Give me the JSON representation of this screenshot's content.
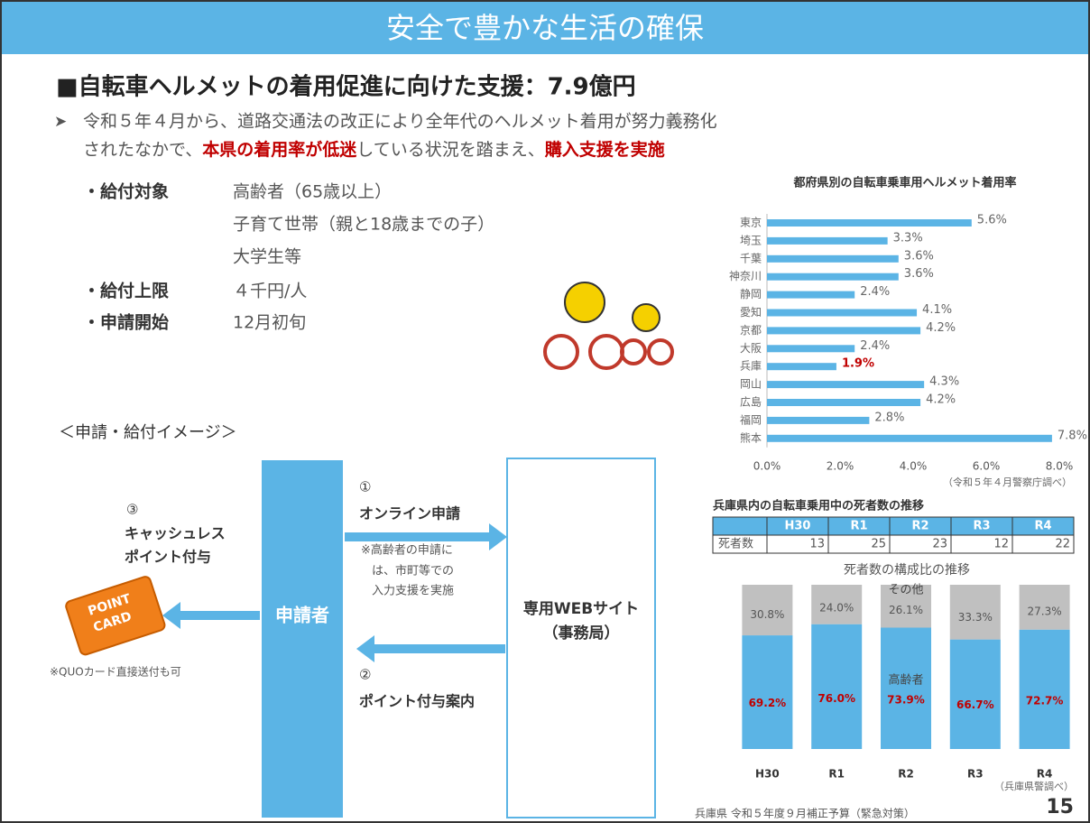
{
  "header": {
    "title": "安全で豊かな生活の確保"
  },
  "heading": "■自転車ヘルメットの着用促進に向けた支援：7.9億円",
  "intro": {
    "line1": "令和５年４月から、道路交通法の改正により全年代のヘルメット着用が努力義務化",
    "line2": [
      "されたなかで、",
      "本県の着用率が低迷",
      "している状況を踏まえ、",
      "購入支援を実施"
    ]
  },
  "items": [
    {
      "label": "・給付対象",
      "values": [
        "高齢者（65歳以上）",
        "子育て世帯（親と18歳までの子）",
        "大学生等"
      ]
    },
    {
      "label": "・給付上限",
      "values": [
        "４千円/人"
      ]
    },
    {
      "label": "・申請開始",
      "values": [
        "12月初旬"
      ]
    }
  ],
  "diagram": {
    "title": "＜申請・給付イメージ＞",
    "applicant": "申請者",
    "site": [
      "専用WEBサイト",
      "（事務局）"
    ],
    "step1": {
      "number": "①",
      "label": "オンライン申請",
      "note": [
        "※高齢者の申請に",
        "は、市町等での",
        "入力支援を実施"
      ]
    },
    "step2": {
      "number": "②",
      "label": "ポイント付与案内"
    },
    "step3": {
      "number": "③",
      "label": [
        "キャッシュレス",
        "ポイント付与"
      ]
    },
    "card": [
      "POINT",
      "CARD"
    ],
    "card_note": "※QUOカード直接送付も可"
  },
  "chart_data": [
    {
      "type": "hbar",
      "title": "都府県別の自転車乗車用ヘルメット着用率",
      "categories": [
        "東京",
        "埼玉",
        "千葉",
        "神奈川",
        "静岡",
        "愛知",
        "京都",
        "大阪",
        "兵庫",
        "岡山",
        "広島",
        "福岡",
        "熊本"
      ],
      "values": [
        5.6,
        3.3,
        3.6,
        3.6,
        2.4,
        4.1,
        4.2,
        2.4,
        1.9,
        4.3,
        4.2,
        2.8,
        7.8
      ],
      "value_labels": [
        "5.6%",
        "3.3%",
        "3.6%",
        "3.6%",
        "2.4%",
        "4.1%",
        "4.2%",
        "2.4%",
        "1.9%",
        "4.3%",
        "4.2%",
        "2.8%",
        "7.8%"
      ],
      "value_label_colors": [
        "#666666",
        "#666666",
        "#666666",
        "#666666",
        "#666666",
        "#666666",
        "#666666",
        "#666666",
        "#c00000",
        "#666666",
        "#666666",
        "#666666",
        "#666666"
      ],
      "color": "#5bb4e5",
      "xlim": [
        0,
        8
      ],
      "xticks": [
        {
          "value": 0,
          "label": "0.0%"
        },
        {
          "value": 2,
          "label": "2.0%"
        },
        {
          "value": 4,
          "label": "4.0%"
        },
        {
          "value": 6,
          "label": "6.0%"
        },
        {
          "value": 8,
          "label": "8.0%"
        }
      ],
      "source": "（令和５年４月警察庁調べ）"
    },
    {
      "type": "stacked_bar",
      "title": "死者数の構成比の推移",
      "categories": [
        "H30",
        "R1",
        "R2",
        "R3",
        "R4"
      ],
      "series": [
        {
          "name": "高齢者",
          "color": "#5bb4e5",
          "label_color": "#c00000",
          "values": [
            69.2,
            76.0,
            73.9,
            66.7,
            72.7
          ],
          "value_labels": [
            "69.2%",
            "76.0%",
            "73.9%",
            "66.7%",
            "72.7%"
          ]
        },
        {
          "name": "その他",
          "color": "#c0c0c0",
          "label_color": "#555555",
          "values": [
            30.8,
            24.0,
            26.1,
            33.3,
            27.3
          ],
          "value_labels": [
            "30.8%",
            "24.0%",
            "26.1%",
            "33.3%",
            "27.3%"
          ]
        }
      ],
      "source": "（兵庫県警調べ）"
    }
  ],
  "table": {
    "title": "兵庫県内の自転車乗用中の死者数の推移",
    "columns": [
      "H30",
      "R1",
      "R2",
      "R3",
      "R4"
    ],
    "rows": [
      {
        "label": "死者数",
        "values": [
          13,
          25,
          23,
          12,
          22
        ]
      }
    ]
  },
  "footer": {
    "text": "兵庫県 令和５年度９月補正予算（緊急対策）",
    "page": 15
  }
}
